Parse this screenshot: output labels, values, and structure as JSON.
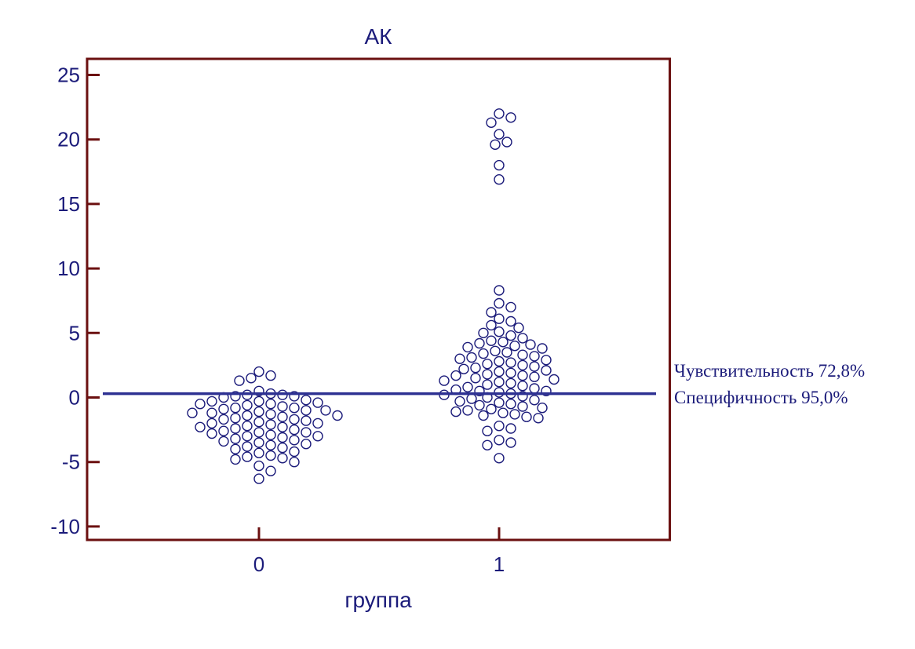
{
  "chart_data": {
    "type": "scatter",
    "title": "АК",
    "xlabel": "группа",
    "ylabel": "",
    "ylim": [
      -11,
      25.6
    ],
    "xlim": [
      -0.72,
      1.72
    ],
    "y_ticks": [
      "25",
      "20",
      "15",
      "10",
      "5",
      "0",
      "-5",
      "-10"
    ],
    "x_ticks": [
      "0",
      "1"
    ],
    "grid": false,
    "cutoff": 0.3,
    "annotations": [
      "Чувствительность 72,8%",
      "Специфичность 95,0%"
    ],
    "colors": {
      "frame": "#6b1010",
      "points": "#1b1b7a",
      "cutoff_line": "#2e3192",
      "text": "#1b1b7a"
    },
    "series": [
      {
        "group": 0,
        "y": [
          2.0,
          1.7,
          1.5,
          1.3,
          0.5,
          0.3,
          0.2,
          0.2,
          0.1,
          0.1,
          0.0,
          -0.2,
          -0.3,
          -0.3,
          -0.4,
          -0.5,
          -0.5,
          -0.6,
          -0.7,
          -0.8,
          -0.8,
          -0.9,
          -1.0,
          -1.0,
          -1.1,
          -1.2,
          -1.2,
          -1.3,
          -1.4,
          -1.4,
          -1.5,
          -1.6,
          -1.7,
          -1.7,
          -1.8,
          -1.9,
          -2.0,
          -2.0,
          -2.1,
          -2.2,
          -2.3,
          -2.3,
          -2.4,
          -2.5,
          -2.6,
          -2.7,
          -2.7,
          -2.8,
          -2.9,
          -3.0,
          -3.0,
          -3.1,
          -3.2,
          -3.3,
          -3.4,
          -3.5,
          -3.6,
          -3.7,
          -3.8,
          -3.9,
          -4.0,
          -4.2,
          -4.3,
          -4.5,
          -4.6,
          -4.7,
          -4.8,
          -5.0,
          -5.3,
          -5.7,
          -6.3
        ]
      },
      {
        "group": 1,
        "y": [
          22.0,
          21.7,
          21.3,
          20.4,
          19.8,
          19.6,
          18.0,
          16.9,
          8.3,
          7.3,
          7.0,
          6.6,
          6.1,
          5.9,
          5.6,
          5.4,
          5.1,
          5.0,
          4.8,
          4.6,
          4.4,
          4.3,
          4.2,
          4.1,
          4.0,
          3.9,
          3.8,
          3.6,
          3.5,
          3.4,
          3.3,
          3.2,
          3.1,
          3.0,
          2.9,
          2.8,
          2.7,
          2.6,
          2.5,
          2.4,
          2.3,
          2.2,
          2.1,
          2.0,
          1.9,
          1.8,
          1.7,
          1.7,
          1.6,
          1.5,
          1.4,
          1.3,
          1.2,
          1.1,
          1.0,
          0.9,
          0.8,
          0.7,
          0.6,
          0.5,
          0.5,
          0.4,
          0.3,
          0.2,
          0.1,
          0.0,
          -0.1,
          -0.2,
          -0.3,
          -0.4,
          -0.5,
          -0.6,
          -0.7,
          -0.8,
          -0.9,
          -1.0,
          -1.1,
          -1.2,
          -1.3,
          -1.4,
          -1.5,
          -1.6,
          -2.2,
          -2.4,
          -2.6,
          -3.3,
          -3.5,
          -3.7,
          -4.7
        ]
      }
    ]
  }
}
